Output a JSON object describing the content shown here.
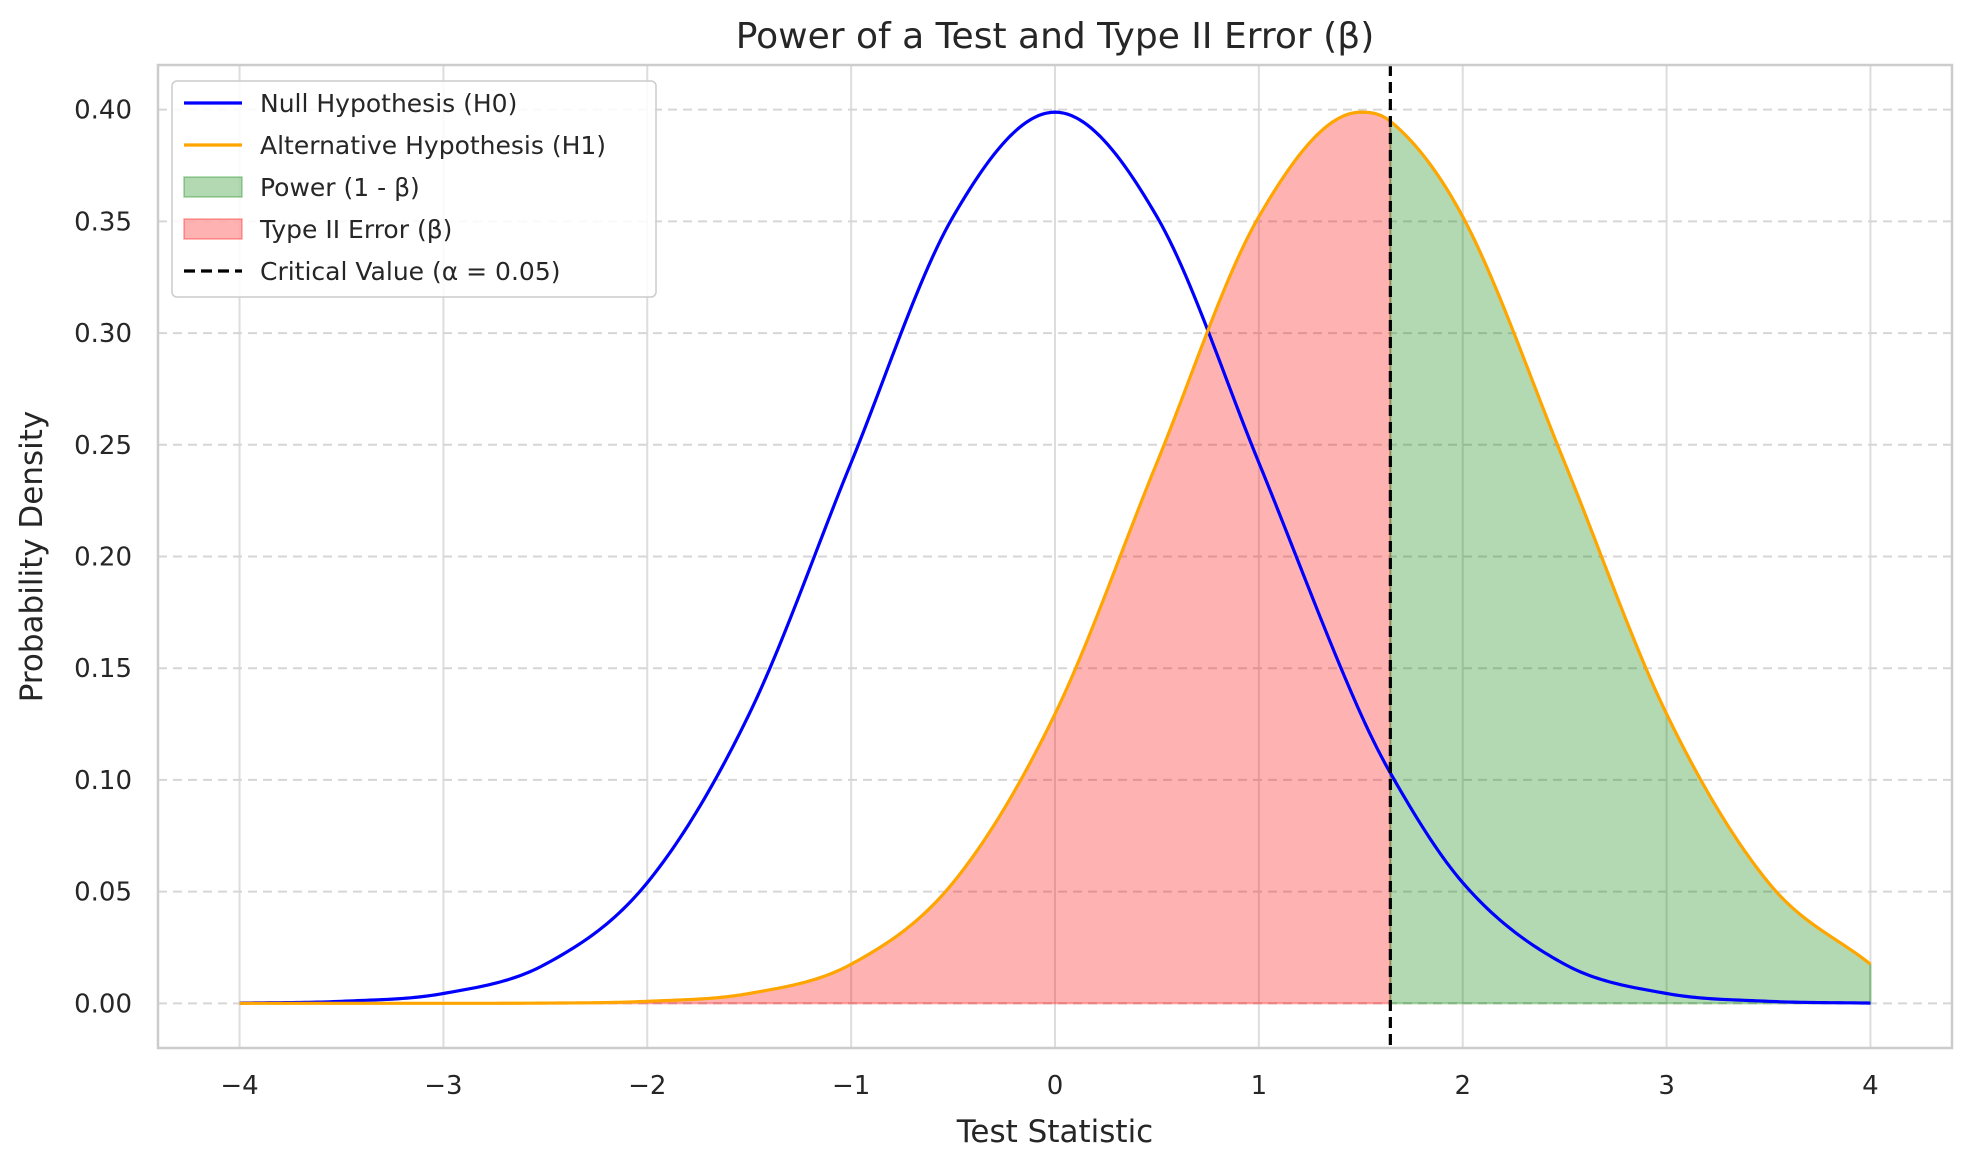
{
  "chart_data": {
    "type": "line",
    "title": "Power of a Test and Type II Error (β)",
    "xlabel": "Test Statistic",
    "ylabel": "Probability Density",
    "xlim": [
      -4.4,
      4.4
    ],
    "ylim": [
      -0.02,
      0.42
    ],
    "x_ticks": [
      -4,
      -3,
      -2,
      -1,
      0,
      1,
      2,
      3,
      4
    ],
    "x_tick_labels": [
      "−4",
      "−3",
      "−2",
      "−1",
      "0",
      "1",
      "2",
      "3",
      "4"
    ],
    "y_ticks": [
      0.0,
      0.05,
      0.1,
      0.15,
      0.2,
      0.25,
      0.3,
      0.35,
      0.4
    ],
    "y_tick_labels": [
      "0.00",
      "0.05",
      "0.10",
      "0.15",
      "0.20",
      "0.25",
      "0.30",
      "0.35",
      "0.40"
    ],
    "grid": true,
    "legend_position": "top-left",
    "critical_value": 1.645,
    "series": [
      {
        "name": "Null Hypothesis (H0)",
        "color": "#0000ff",
        "x": [
          -4.0,
          -3.5,
          -3.0,
          -2.5,
          -2.0,
          -1.5,
          -1.0,
          -0.5,
          0.0,
          0.5,
          1.0,
          1.5,
          1.645,
          2.0,
          2.5,
          3.0,
          3.5,
          4.0
        ],
        "y": [
          0.0001,
          0.0009,
          0.0044,
          0.0175,
          0.054,
          0.1295,
          0.242,
          0.3521,
          0.3989,
          0.3521,
          0.242,
          0.1295,
          0.1031,
          0.054,
          0.0175,
          0.0044,
          0.0009,
          0.0001
        ]
      },
      {
        "name": "Alternative Hypothesis (H1)",
        "color": "#ffa500",
        "x": [
          -4.0,
          -3.5,
          -3.0,
          -2.5,
          -2.0,
          -1.5,
          -1.0,
          -0.5,
          0.0,
          0.5,
          1.0,
          1.5,
          1.645,
          2.0,
          2.5,
          3.0,
          3.5,
          4.0
        ],
        "y": [
          0.0,
          0.0,
          0.0,
          0.0001,
          0.0009,
          0.0044,
          0.0175,
          0.054,
          0.1295,
          0.242,
          0.3521,
          0.3989,
          0.3948,
          0.3521,
          0.242,
          0.1295,
          0.054,
          0.0175
        ]
      }
    ],
    "legend": [
      {
        "label": "Null Hypothesis (H0)",
        "kind": "line",
        "color": "#0000ff"
      },
      {
        "label": "Alternative Hypothesis (H1)",
        "kind": "line",
        "color": "#ffa500"
      },
      {
        "label": "Power (1 - β)",
        "kind": "patch",
        "color": "#008000"
      },
      {
        "label": "Type II Error (β)",
        "kind": "patch",
        "color": "#ff0000"
      },
      {
        "label": "Critical Value (α = 0.05)",
        "kind": "dashed",
        "color": "#000000"
      }
    ],
    "fills": {
      "power_color": "#008000",
      "type2_color": "#ff0000",
      "alpha": 0.3
    }
  }
}
